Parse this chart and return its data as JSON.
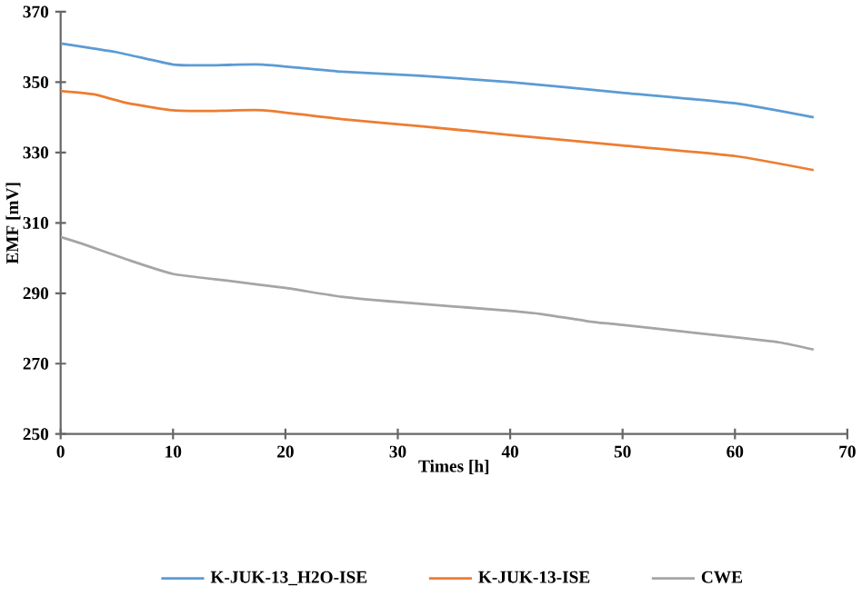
{
  "chart_data": {
    "type": "line",
    "xlabel": "Times [h]",
    "ylabel": "EMF [mV]",
    "xlim": [
      0,
      70
    ],
    "xticks": [
      0,
      10,
      20,
      30,
      40,
      50,
      60,
      70
    ],
    "ylim": [
      250,
      370
    ],
    "yticks": [
      250,
      270,
      290,
      310,
      330,
      350,
      370
    ],
    "grid": false,
    "legend": "bottom",
    "marker": "none",
    "line_style": "solid",
    "series": [
      {
        "name": "K-JUK-13_H2O-ISE",
        "color": "#5b9bd5",
        "x": [
          0,
          5,
          10,
          13,
          18,
          25,
          32,
          40,
          50,
          60,
          67
        ],
        "values": [
          361,
          358.5,
          355,
          354.8,
          355,
          353,
          351.8,
          350,
          347,
          344,
          340
        ]
      },
      {
        "name": "K-JUK-13-ISE",
        "color": "#ed7d31",
        "x": [
          0,
          3,
          6,
          10,
          13,
          18,
          25,
          32,
          40,
          50,
          60,
          67
        ],
        "values": [
          347.5,
          346.5,
          344,
          342,
          341.8,
          342,
          339.5,
          337.5,
          335,
          332,
          329,
          325
        ]
      },
      {
        "name": "CWE",
        "color": "#a5a5a5",
        "x": [
          0,
          2,
          6,
          10,
          15,
          20,
          25,
          30,
          40,
          43,
          47,
          50,
          60,
          64,
          67
        ],
        "values": [
          306,
          304,
          299.5,
          295.5,
          293.5,
          291.5,
          289,
          287.5,
          285,
          284,
          282,
          281,
          277.5,
          276,
          274
        ]
      }
    ]
  }
}
